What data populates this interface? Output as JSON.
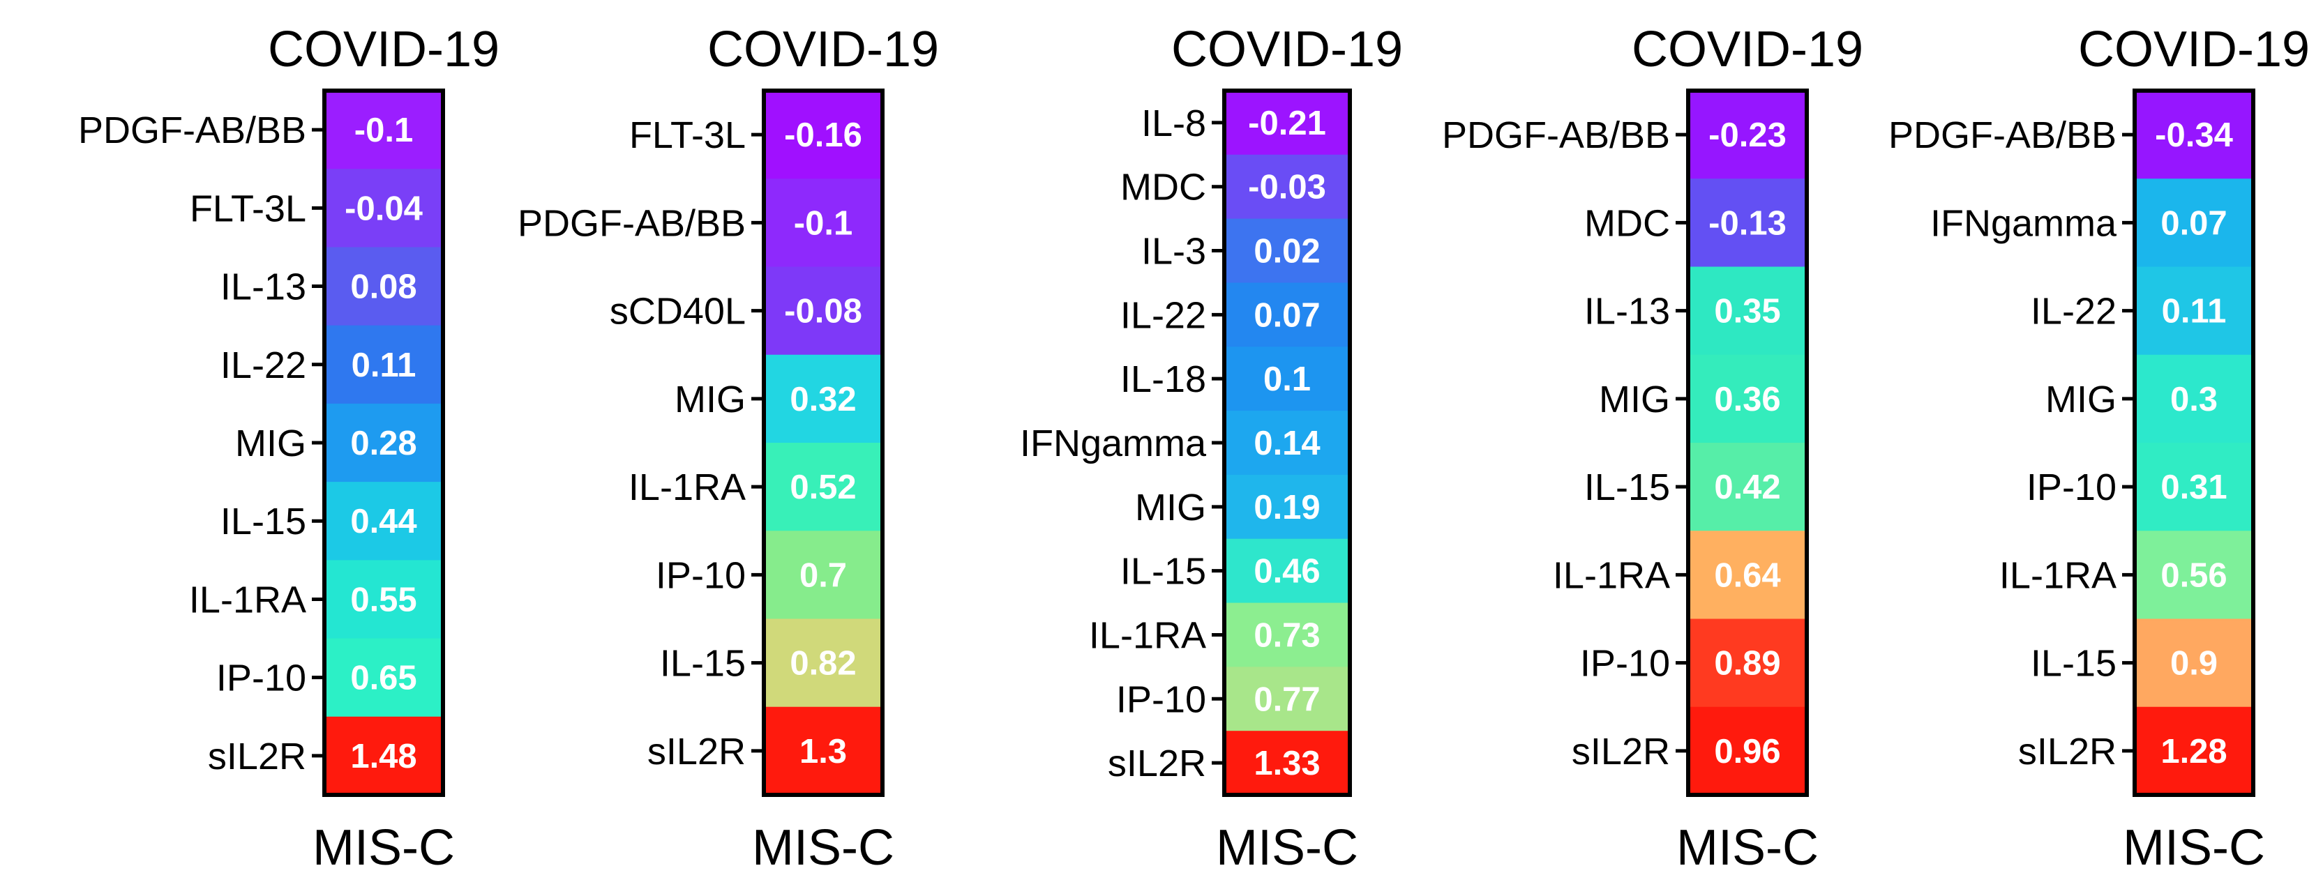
{
  "chart_data": [
    {
      "type": "heatmap",
      "title": "COVID-19",
      "xlabel": "MIS-C",
      "rows": [
        {
          "label": "PDGF-AB/BB",
          "value": -0.1,
          "display": "-0.1",
          "color": "#9b1eff"
        },
        {
          "label": "FLT-3L",
          "value": -0.04,
          "display": "-0.04",
          "color": "#7a3ff7"
        },
        {
          "label": "IL-13",
          "value": 0.08,
          "display": "0.08",
          "color": "#5a5cf0"
        },
        {
          "label": "IL-22",
          "value": 0.11,
          "display": "0.11",
          "color": "#2f78ef"
        },
        {
          "label": "MIG",
          "value": 0.28,
          "display": "0.28",
          "color": "#1e9bf0"
        },
        {
          "label": "IL-15",
          "value": 0.44,
          "display": "0.44",
          "color": "#1cc9e6"
        },
        {
          "label": "IL-1RA",
          "value": 0.55,
          "display": "0.55",
          "color": "#24e6d2"
        },
        {
          "label": "IP-10",
          "value": 0.65,
          "display": "0.65",
          "color": "#2cf0c6"
        },
        {
          "label": "sIL2R",
          "value": 1.48,
          "display": "1.48",
          "color": "#ff1a0d"
        }
      ]
    },
    {
      "type": "heatmap",
      "title": "COVID-19",
      "xlabel": "MIS-C",
      "rows": [
        {
          "label": "FLT-3L",
          "value": -0.16,
          "display": "-0.16",
          "color": "#a010ff"
        },
        {
          "label": "PDGF-AB/BB",
          "value": -0.1,
          "display": "-0.1",
          "color": "#8e29fc"
        },
        {
          "label": "sCD40L",
          "value": -0.08,
          "display": "-0.08",
          "color": "#7e39f8"
        },
        {
          "label": "MIG",
          "value": 0.32,
          "display": "0.32",
          "color": "#22d6e2"
        },
        {
          "label": "IL-1RA",
          "value": 0.52,
          "display": "0.52",
          "color": "#38f0b8"
        },
        {
          "label": "IP-10",
          "value": 0.7,
          "display": "0.7",
          "color": "#86ec8c"
        },
        {
          "label": "IL-15",
          "value": 0.82,
          "display": "0.82",
          "color": "#d0d97a"
        },
        {
          "label": "sIL2R",
          "value": 1.3,
          "display": "1.3",
          "color": "#ff1a0d"
        }
      ]
    },
    {
      "type": "heatmap",
      "title": "COVID-19",
      "xlabel": "MIS-C",
      "rows": [
        {
          "label": "IL-8",
          "value": -0.21,
          "display": "-0.21",
          "color": "#9c14ff"
        },
        {
          "label": "MDC",
          "value": -0.03,
          "display": "-0.03",
          "color": "#6a4df5"
        },
        {
          "label": "IL-3",
          "value": 0.02,
          "display": "0.02",
          "color": "#3d74f0"
        },
        {
          "label": "IL-22",
          "value": 0.07,
          "display": "0.07",
          "color": "#2387f0"
        },
        {
          "label": "IL-18",
          "value": 0.1,
          "display": "0.1",
          "color": "#1d95f0"
        },
        {
          "label": "IFNgamma",
          "value": 0.14,
          "display": "0.14",
          "color": "#1da7ef"
        },
        {
          "label": "MIG",
          "value": 0.19,
          "display": "0.19",
          "color": "#1fb6ec"
        },
        {
          "label": "IL-15",
          "value": 0.46,
          "display": "0.46",
          "color": "#2ee6cc"
        },
        {
          "label": "IL-1RA",
          "value": 0.73,
          "display": "0.73",
          "color": "#8cee90"
        },
        {
          "label": "IP-10",
          "value": 0.77,
          "display": "0.77",
          "color": "#a8e68a"
        },
        {
          "label": "sIL2R",
          "value": 1.33,
          "display": "1.33",
          "color": "#ff1a0d"
        }
      ]
    },
    {
      "type": "heatmap",
      "title": "COVID-19",
      "xlabel": "MIS-C",
      "rows": [
        {
          "label": "PDGF-AB/BB",
          "value": -0.23,
          "display": "-0.23",
          "color": "#9616ff"
        },
        {
          "label": "MDC",
          "value": -0.13,
          "display": "-0.13",
          "color": "#6350f3"
        },
        {
          "label": "IL-13",
          "value": 0.35,
          "display": "0.35",
          "color": "#2ee8c2"
        },
        {
          "label": "MIG",
          "value": 0.36,
          "display": "0.36",
          "color": "#34ecbc"
        },
        {
          "label": "IL-15",
          "value": 0.42,
          "display": "0.42",
          "color": "#56eea8"
        },
        {
          "label": "IL-1RA",
          "value": 0.64,
          "display": "0.64",
          "color": "#ffb060"
        },
        {
          "label": "IP-10",
          "value": 0.89,
          "display": "0.89",
          "color": "#ff3a20"
        },
        {
          "label": "sIL2R",
          "value": 0.96,
          "display": "0.96",
          "color": "#ff1a0d"
        }
      ]
    },
    {
      "type": "heatmap",
      "title": "COVID-19",
      "xlabel": "MIS-C",
      "rows": [
        {
          "label": "PDGF-AB/BB",
          "value": -0.34,
          "display": "-0.34",
          "color": "#9616ff"
        },
        {
          "label": "IFNgamma",
          "value": 0.07,
          "display": "0.07",
          "color": "#1bb6ec"
        },
        {
          "label": "IL-22",
          "value": 0.11,
          "display": "0.11",
          "color": "#1fc6e6"
        },
        {
          "label": "MIG",
          "value": 0.3,
          "display": "0.3",
          "color": "#2ce8cc"
        },
        {
          "label": "IP-10",
          "value": 0.31,
          "display": "0.31",
          "color": "#30ecc4"
        },
        {
          "label": "IL-1RA",
          "value": 0.56,
          "display": "0.56",
          "color": "#7ef09a"
        },
        {
          "label": "IL-15",
          "value": 0.9,
          "display": "0.9",
          "color": "#ffa860"
        },
        {
          "label": "sIL2R",
          "value": 1.28,
          "display": "1.28",
          "color": "#ff1a0d"
        }
      ]
    }
  ]
}
